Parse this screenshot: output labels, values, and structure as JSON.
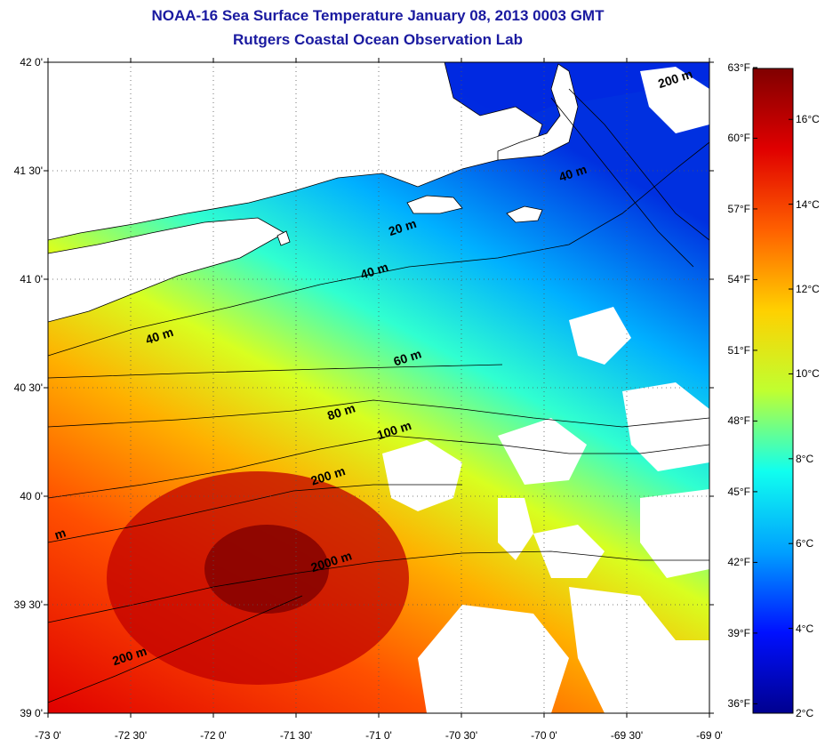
{
  "header": {
    "title": "NOAA-16 Sea Surface Temperature January 08, 2013 0003 GMT",
    "subtitle": "Rutgers Coastal Ocean Observation Lab"
  },
  "map": {
    "lon_range": [
      -73.0,
      -69.0
    ],
    "lat_range": [
      39.0,
      42.0
    ],
    "lat_ticks": [
      {
        "value": 42.0,
        "label": "42 0'"
      },
      {
        "value": 41.5,
        "label": "41 30'"
      },
      {
        "value": 41.0,
        "label": "41 0'"
      },
      {
        "value": 40.5,
        "label": "40 30'"
      },
      {
        "value": 40.0,
        "label": "40 0'"
      },
      {
        "value": 39.5,
        "label": "39 30'"
      },
      {
        "value": 39.0,
        "label": "39 0'"
      }
    ],
    "lon_ticks": [
      {
        "value": -73.0,
        "label": "-73 0'"
      },
      {
        "value": -72.5,
        "label": "-72 30'"
      },
      {
        "value": -72.0,
        "label": "-72 0'"
      },
      {
        "value": -71.5,
        "label": "-71 30'"
      },
      {
        "value": -71.0,
        "label": "-71 0'"
      },
      {
        "value": -70.5,
        "label": "-70 30'"
      },
      {
        "value": -70.0,
        "label": "-70 0'"
      },
      {
        "value": -69.5,
        "label": "-69 30'"
      },
      {
        "value": -69.0,
        "label": "-69 0'"
      }
    ],
    "isobath_labels": [
      {
        "text": "20 m",
        "lon": -70.93,
        "lat": 41.2
      },
      {
        "text": "40 m",
        "lon": -71.1,
        "lat": 41.0
      },
      {
        "text": "40 m",
        "lon": -72.4,
        "lat": 40.7
      },
      {
        "text": "40 m",
        "lon": -69.9,
        "lat": 41.45
      },
      {
        "text": "60 m",
        "lon": -70.9,
        "lat": 40.6
      },
      {
        "text": "80 m",
        "lon": -71.3,
        "lat": 40.35
      },
      {
        "text": "100 m",
        "lon": -71.0,
        "lat": 40.26
      },
      {
        "text": "200 m",
        "lon": -71.4,
        "lat": 40.05
      },
      {
        "text": "2000 m",
        "lon": -71.4,
        "lat": 39.65
      },
      {
        "text": "200 m",
        "lon": -72.6,
        "lat": 39.22
      },
      {
        "text": "200 m",
        "lon": -69.3,
        "lat": 41.88
      },
      {
        "text": "m",
        "lon": -72.95,
        "lat": 39.8
      }
    ],
    "colors": {
      "land": "#ffffff",
      "coast": "#000000",
      "grid": "#555555"
    }
  },
  "colorbar": {
    "range_c": [
      2,
      17.2
    ],
    "celsius_labels": [
      {
        "value": 16,
        "label": "16°C"
      },
      {
        "value": 14,
        "label": "14°C"
      },
      {
        "value": 12,
        "label": "12°C"
      },
      {
        "value": 10,
        "label": "10°C"
      },
      {
        "value": 8,
        "label": "8°C"
      },
      {
        "value": 6,
        "label": "6°C"
      },
      {
        "value": 4,
        "label": "4°C"
      },
      {
        "value": 2,
        "label": "2°C"
      }
    ],
    "fahrenheit_labels": [
      {
        "value": 63,
        "label": "63°F"
      },
      {
        "value": 60,
        "label": "60°F"
      },
      {
        "value": 57,
        "label": "57°F"
      },
      {
        "value": 54,
        "label": "54°F"
      },
      {
        "value": 51,
        "label": "51°F"
      },
      {
        "value": 48,
        "label": "48°F"
      },
      {
        "value": 45,
        "label": "45°F"
      },
      {
        "value": 42,
        "label": "42°F"
      },
      {
        "value": 39,
        "label": "39°F"
      },
      {
        "value": 36,
        "label": "36°F"
      }
    ],
    "stops": [
      "#00008f",
      "#0010ff",
      "#00a0ff",
      "#10ffef",
      "#c0ff30",
      "#ffd000",
      "#ff6000",
      "#e00000",
      "#800000"
    ]
  }
}
